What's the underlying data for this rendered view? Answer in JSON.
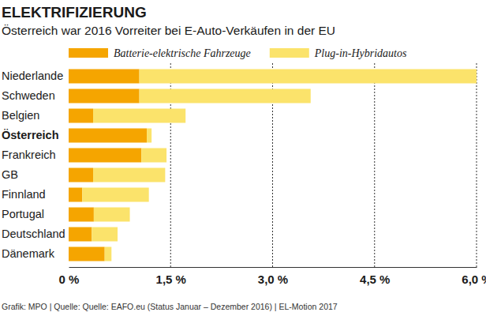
{
  "chart_data": {
    "type": "bar",
    "orientation": "horizontal",
    "stacked": true,
    "title": "ELEKTRIFIZIERUNG",
    "subtitle": "Österreich war 2016 Vorreiter bei E-Auto-Verkäufen in der EU",
    "source": "Grafik: MPO | Quelle: Quelle: EAFO.eu (Status Januar – Dezember 2016) | EL-Motion 2017",
    "categories": [
      "Niederlande",
      "Schweden",
      "Belgien",
      "Österreich",
      "Frankreich",
      "GB",
      "Finnland",
      "Portugal",
      "Deutschland",
      "Dänemark"
    ],
    "series": [
      {
        "name": "Batterie-elektrische Fahrzeuge",
        "color": "#f5a500",
        "values": [
          1.04,
          1.04,
          0.36,
          1.15,
          1.07,
          0.36,
          0.2,
          0.37,
          0.34,
          0.53
        ]
      },
      {
        "name": "Plug-in-Hybridautos",
        "color": "#fbe36b",
        "values": [
          4.96,
          2.52,
          1.36,
          0.07,
          0.37,
          1.06,
          0.98,
          0.53,
          0.38,
          0.1
        ]
      }
    ],
    "xlim": [
      0,
      6.0
    ],
    "xticks": [
      {
        "value": 0,
        "label": "0 %"
      },
      {
        "value": 1.5,
        "label": "1,5 %"
      },
      {
        "value": 3.0,
        "label": "3,0 %"
      },
      {
        "value": 4.5,
        "label": "4,5 %"
      },
      {
        "value": 6.0,
        "label": "6,0 %"
      }
    ],
    "grid": true,
    "legend": "top"
  }
}
